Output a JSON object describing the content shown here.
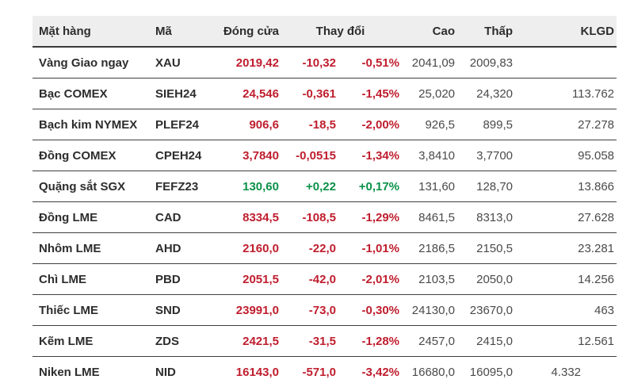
{
  "colors": {
    "page_background": "#ffffff",
    "header_background": "#eeeeee",
    "header_text": "#2d2d2d",
    "name_text": "#2d2d2d",
    "neutral_value_text": "#4a4a4a",
    "down_value": "#bf1e2e",
    "up_value": "#0a9148",
    "row_border": "#3f3f3f"
  },
  "table": {
    "header": [
      {
        "key": "name",
        "label": "Mặt hàng"
      },
      {
        "key": "code",
        "label": "Mã"
      },
      {
        "key": "close",
        "label": "Đóng cửa"
      },
      {
        "key": "change",
        "label": "Thay đổi"
      },
      {
        "key": "high",
        "label": "Cao"
      },
      {
        "key": "low",
        "label": "Thấp"
      },
      {
        "key": "volume",
        "label": "KLGD"
      }
    ],
    "rows": [
      {
        "name": "Vàng Giao ngay",
        "code": "XAU",
        "close": "2019,42",
        "change": "-10,32",
        "change_pct": "-0,51%",
        "high": "2041,09",
        "low": "2009,83",
        "volume": "",
        "trend": "down"
      },
      {
        "name": "Bạc COMEX",
        "code": "SIEH24",
        "close": "24,546",
        "change": "-0,361",
        "change_pct": "-1,45%",
        "high": "25,020",
        "low": "24,320",
        "volume": "113.762",
        "trend": "down"
      },
      {
        "name": "Bạch kim NYMEX",
        "code": "PLEF24",
        "close": "906,6",
        "change": "-18,5",
        "change_pct": "-2,00%",
        "high": "926,5",
        "low": "899,5",
        "volume": "27.278",
        "trend": "down"
      },
      {
        "name": "Đồng COMEX",
        "code": "CPEH24",
        "close": "3,7840",
        "change": "-0,0515",
        "change_pct": "-1,34%",
        "high": "3,8410",
        "low": "3,7700",
        "volume": "95.058",
        "trend": "down"
      },
      {
        "name": "Quặng sắt SGX",
        "code": "FEFZ23",
        "close": "130,60",
        "change": "+0,22",
        "change_pct": "+0,17%",
        "high": "131,60",
        "low": "128,70",
        "volume": "13.866",
        "trend": "up"
      },
      {
        "name": "Đồng LME",
        "code": "CAD",
        "close": "8334,5",
        "change": "-108,5",
        "change_pct": "-1,29%",
        "high": "8461,5",
        "low": "8313,0",
        "volume": "27.628",
        "trend": "down"
      },
      {
        "name": "Nhôm LME",
        "code": "AHD",
        "close": "2160,0",
        "change": "-22,0",
        "change_pct": "-1,01%",
        "high": "2186,5",
        "low": "2150,5",
        "volume": "23.281",
        "trend": "down"
      },
      {
        "name": "Chì LME",
        "code": "PBD",
        "close": "2051,5",
        "change": "-42,0",
        "change_pct": "-2,01%",
        "high": "2103,5",
        "low": "2050,0",
        "volume": "14.256",
        "trend": "down"
      },
      {
        "name": "Thiếc LME",
        "code": "SND",
        "close": "23991,0",
        "change": "-73,0",
        "change_pct": "-0,30%",
        "high": "24130,0",
        "low": "23670,0",
        "volume": "463",
        "trend": "down"
      },
      {
        "name": "Kẽm LME",
        "code": "ZDS",
        "close": "2421,5",
        "change": "-31,5",
        "change_pct": "-1,28%",
        "high": "2457,0",
        "low": "2415,0",
        "volume": "12.561",
        "trend": "down"
      },
      {
        "name": "Niken LME",
        "code": "NID",
        "close": "16143,0",
        "change": "-571,0",
        "change_pct": "-3,42%",
        "high": "16680,0",
        "low": "16095,0",
        "volume": "4.332",
        "trend": "down",
        "volume_offset": true
      }
    ]
  }
}
